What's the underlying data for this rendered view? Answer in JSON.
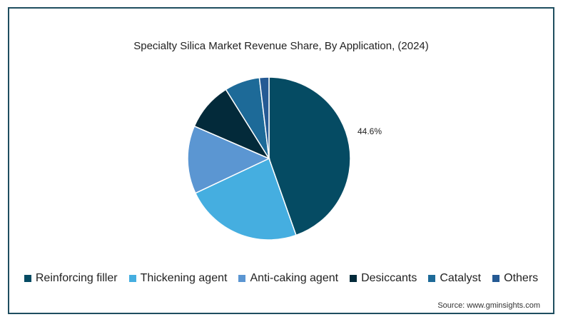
{
  "chart_data": {
    "type": "pie",
    "title": "Specialty Silica Market Revenue Share, By Application, (2024)",
    "categories": [
      "Reinforcing filler",
      "Thickening agent",
      "Anti-caking agent",
      "Desiccants",
      "Catalyst",
      "Others"
    ],
    "values": [
      44.6,
      23.4,
      13.5,
      9.6,
      7.0,
      1.9
    ],
    "colors": [
      "#054b63",
      "#45aee0",
      "#5b96d2",
      "#032a3a",
      "#1d6a98",
      "#255a94"
    ],
    "data_labels": [
      {
        "category": "Reinforcing filler",
        "text": "44.6%"
      }
    ],
    "legend_position": "bottom"
  },
  "source": "Source: www.gminsights.com"
}
